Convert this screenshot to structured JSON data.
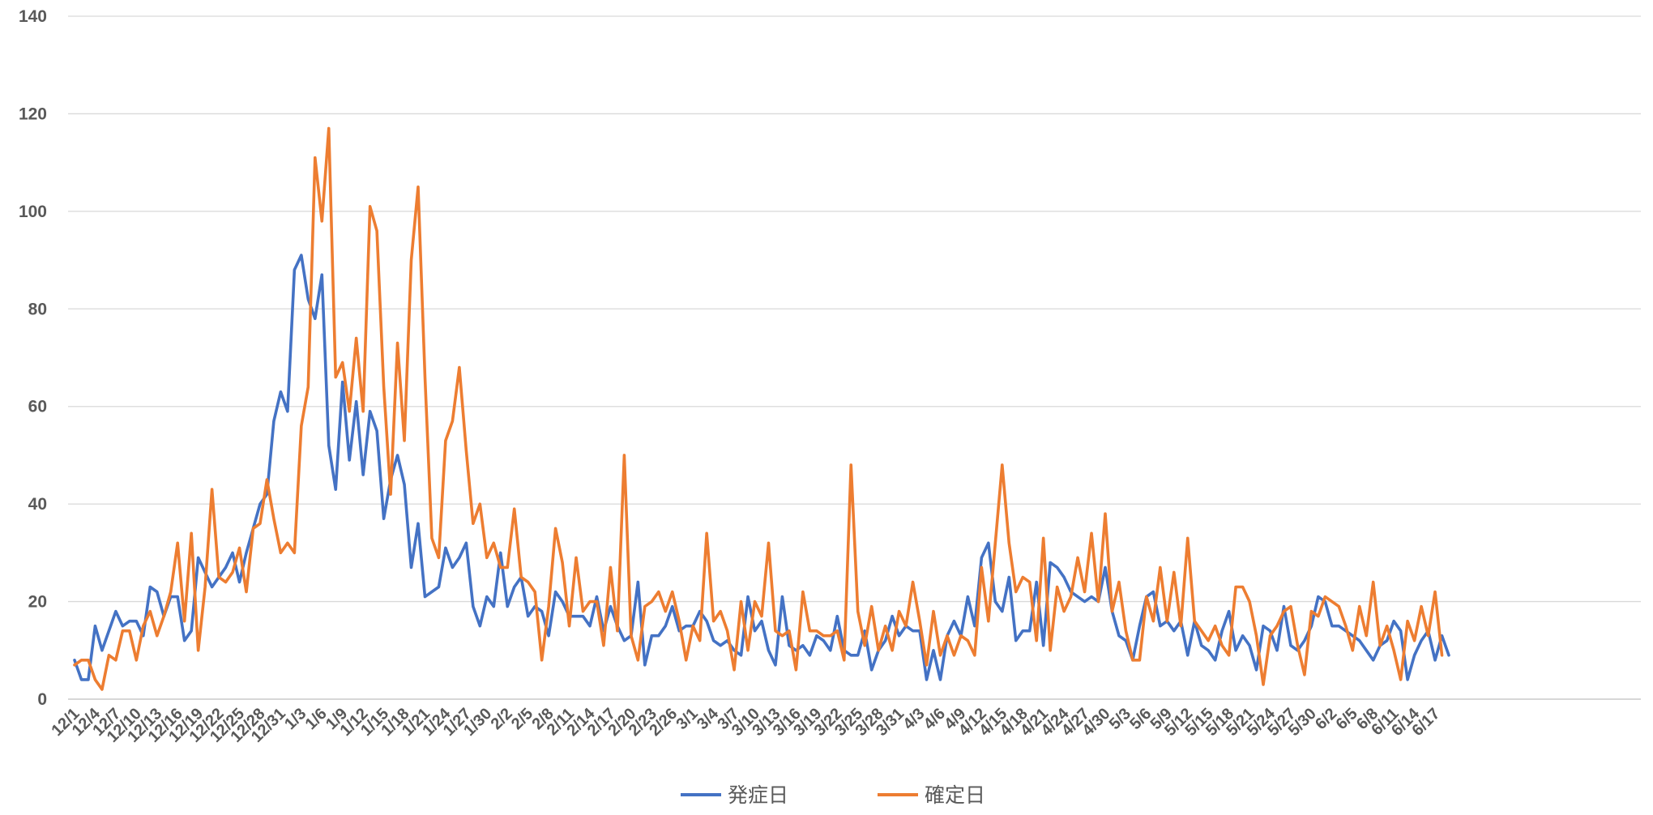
{
  "chart_data": {
    "type": "line",
    "title": "",
    "xlabel": "",
    "ylabel": "",
    "ylim": [
      0,
      140
    ],
    "yticks": [
      0,
      20,
      40,
      60,
      80,
      100,
      120,
      140
    ],
    "grid": true,
    "legend_position": "bottom",
    "x_tick_labels": [
      "12/1",
      "12/4",
      "12/7",
      "12/10",
      "12/13",
      "12/16",
      "12/19",
      "12/22",
      "12/25",
      "12/28",
      "12/31",
      "1/3",
      "1/6",
      "1/9",
      "1/12",
      "1/15",
      "1/18",
      "1/21",
      "1/24",
      "1/27",
      "1/30",
      "2/2",
      "2/5",
      "2/8",
      "2/11",
      "2/14",
      "2/17",
      "2/20",
      "2/23",
      "2/26",
      "3/1",
      "3/4",
      "3/7",
      "3/10",
      "3/13",
      "3/16",
      "3/19",
      "3/22",
      "3/25",
      "3/28",
      "3/31",
      "4/3",
      "4/6",
      "4/9",
      "4/12",
      "4/15",
      "4/18",
      "4/21",
      "4/24",
      "4/27",
      "4/30",
      "5/3",
      "5/6",
      "5/9",
      "5/12",
      "5/15",
      "5/18",
      "5/21",
      "5/24",
      "5/27",
      "5/30",
      "6/2",
      "6/5",
      "6/8",
      "6/11",
      "6/14",
      "6/17"
    ],
    "x_start": "12/1",
    "series": [
      {
        "name": "発症日",
        "color": "#4472c4",
        "values": [
          8,
          4,
          4,
          15,
          10,
          14,
          18,
          15,
          16,
          16,
          13,
          23,
          22,
          17,
          21,
          21,
          12,
          14,
          29,
          26,
          23,
          25,
          27,
          30,
          24,
          30,
          35,
          40,
          42,
          57,
          63,
          59,
          88,
          91,
          82,
          78,
          87,
          52,
          43,
          65,
          49,
          61,
          46,
          59,
          55,
          37,
          45,
          50,
          44,
          27,
          36,
          21,
          22,
          23,
          31,
          27,
          29,
          32,
          19,
          15,
          21,
          19,
          30,
          19,
          23,
          25,
          17,
          19,
          18,
          13,
          22,
          20,
          17,
          17,
          17,
          15,
          21,
          14,
          19,
          15,
          12,
          13,
          24,
          7,
          13,
          13,
          15,
          19,
          14,
          15,
          15,
          18,
          16,
          12,
          11,
          12,
          10,
          9,
          21,
          14,
          16,
          10,
          7,
          21,
          11,
          10,
          11,
          9,
          13,
          12,
          10,
          17,
          10,
          9,
          9,
          14,
          6,
          10,
          12,
          17,
          13,
          15,
          14,
          14,
          4,
          10,
          4,
          13,
          16,
          13,
          21,
          15,
          29,
          32,
          20,
          18,
          25,
          12,
          14,
          14,
          24,
          11,
          28,
          27,
          25,
          22,
          21,
          20,
          21,
          20,
          27,
          18,
          13,
          12,
          8,
          15,
          21,
          22,
          15,
          16,
          14,
          16,
          9,
          16,
          11,
          10,
          8,
          14,
          18,
          10,
          13,
          11,
          6,
          15,
          14,
          10,
          19,
          11,
          10,
          12,
          15,
          21,
          20,
          15,
          15,
          14,
          13,
          12,
          10,
          8,
          11,
          12,
          16,
          14,
          4,
          9,
          12,
          14,
          8,
          13,
          9
        ],
        "start_offset": 0
      },
      {
        "name": "確定日",
        "color": "#ed7d31",
        "values": [
          7,
          8,
          8,
          4,
          2,
          9,
          8,
          14,
          14,
          8,
          15,
          18,
          13,
          17,
          22,
          32,
          16,
          34,
          10,
          23,
          43,
          25,
          24,
          26,
          31,
          22,
          35,
          36,
          45,
          37,
          30,
          32,
          30,
          56,
          64,
          111,
          98,
          117,
          66,
          69,
          59,
          74,
          59,
          101,
          96,
          64,
          42,
          73,
          53,
          90,
          105,
          66,
          33,
          29,
          53,
          57,
          68,
          51,
          36,
          40,
          29,
          32,
          27,
          27,
          39,
          25,
          24,
          22,
          8,
          19,
          35,
          28,
          15,
          29,
          18,
          20,
          20,
          11,
          27,
          14,
          50,
          13,
          8,
          19,
          20,
          22,
          18,
          22,
          16,
          8,
          15,
          12,
          34,
          16,
          18,
          14,
          6,
          20,
          10,
          20,
          17,
          32,
          14,
          13,
          14,
          6,
          22,
          14,
          14,
          13,
          13,
          14,
          8,
          48,
          18,
          11,
          19,
          10,
          15,
          10,
          18,
          15,
          24,
          16,
          7,
          18,
          9,
          13,
          9,
          13,
          12,
          9,
          27,
          16,
          32,
          48,
          32,
          22,
          25,
          24,
          12,
          33,
          10,
          23,
          18,
          21,
          29,
          22,
          34,
          20,
          38,
          18,
          24,
          14,
          8,
          8,
          21,
          16,
          27,
          16,
          26,
          15,
          33,
          16,
          14,
          12,
          15,
          11,
          9,
          23,
          23,
          20,
          13,
          3,
          13,
          15,
          18,
          19,
          11,
          5,
          18,
          17,
          21,
          20,
          19,
          15,
          10,
          19,
          13,
          24,
          11,
          15,
          10,
          4,
          16,
          12,
          19,
          13,
          22,
          9
        ],
        "start_offset": 1
      }
    ]
  }
}
